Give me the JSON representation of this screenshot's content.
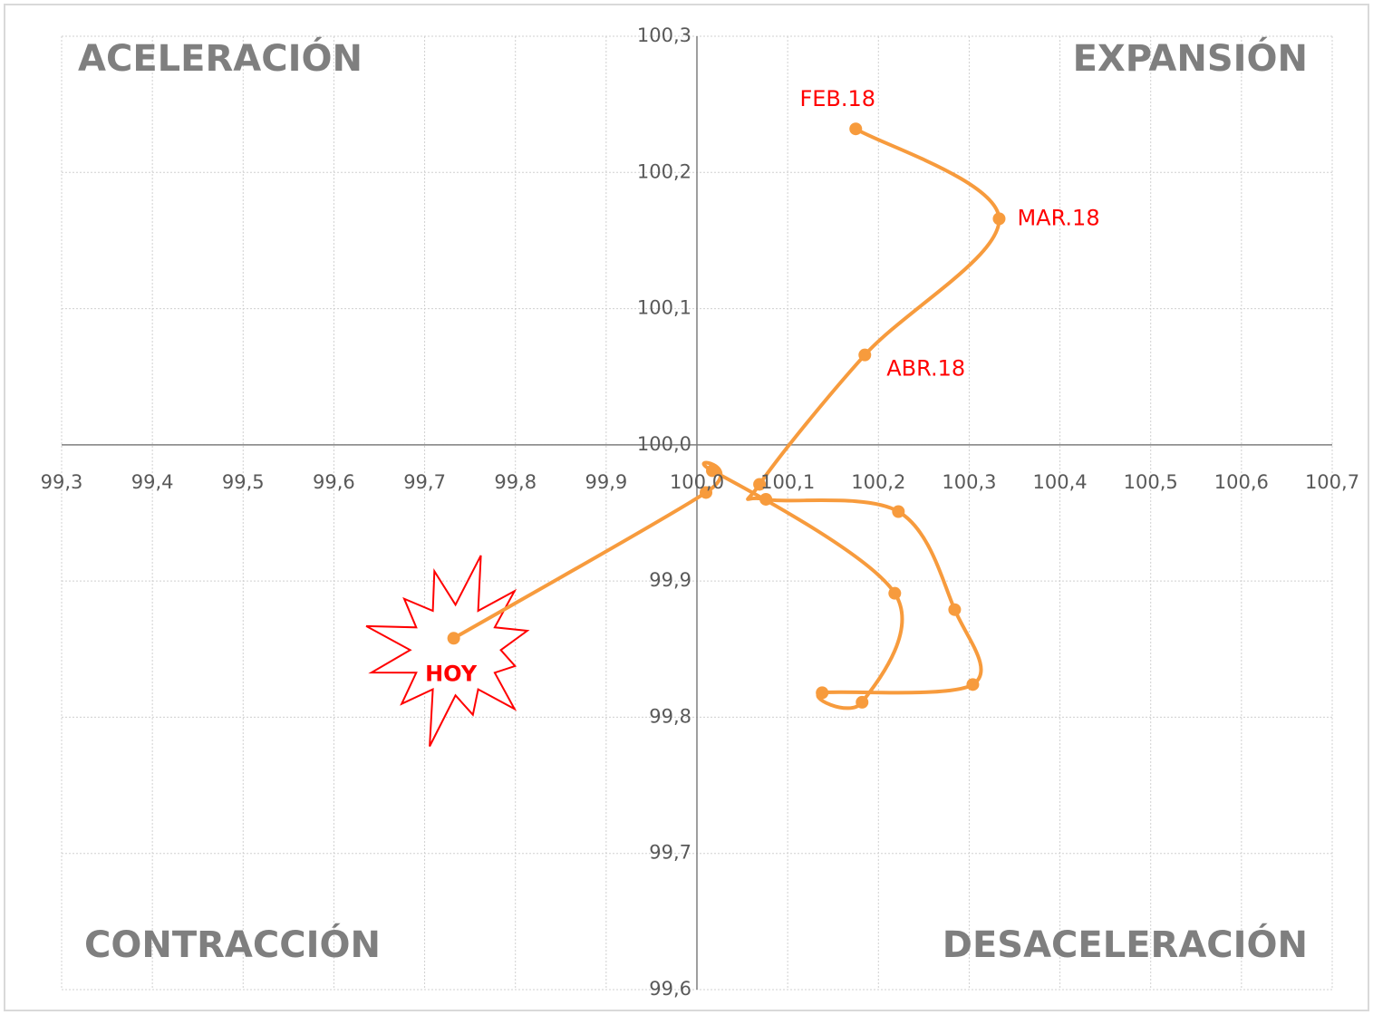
{
  "chart_data": {
    "type": "scatter",
    "xlim": [
      99.3,
      100.7
    ],
    "ylim": [
      99.6,
      100.3
    ],
    "xticks": [
      {
        "value": 99.3,
        "label": "99,3"
      },
      {
        "value": 99.4,
        "label": "99,4"
      },
      {
        "value": 99.5,
        "label": "99,5"
      },
      {
        "value": 99.6,
        "label": "99,6"
      },
      {
        "value": 99.7,
        "label": "99,7"
      },
      {
        "value": 99.8,
        "label": "99,8"
      },
      {
        "value": 99.9,
        "label": "99,9"
      },
      {
        "value": 100.0,
        "label": "100,0"
      },
      {
        "value": 100.1,
        "label": "100,1"
      },
      {
        "value": 100.2,
        "label": "100,2"
      },
      {
        "value": 100.3,
        "label": "100,3"
      },
      {
        "value": 100.4,
        "label": "100,4"
      },
      {
        "value": 100.5,
        "label": "100,5"
      },
      {
        "value": 100.6,
        "label": "100,6"
      },
      {
        "value": 100.7,
        "label": "100,7"
      }
    ],
    "yticks": [
      {
        "value": 99.6,
        "label": "99,6"
      },
      {
        "value": 99.7,
        "label": "99,7"
      },
      {
        "value": 99.8,
        "label": "99,8"
      },
      {
        "value": 99.9,
        "label": "99,9"
      },
      {
        "value": 100.0,
        "label": "100,0"
      },
      {
        "value": 100.1,
        "label": "100,1"
      },
      {
        "value": 100.2,
        "label": "100,2"
      },
      {
        "value": 100.3,
        "label": "100,3"
      }
    ],
    "grid": true,
    "x": [
      100.175,
      100.333,
      100.185,
      100.069,
      100.076,
      100.222,
      100.284,
      100.304,
      100.138,
      100.182,
      100.218,
      100.017,
      100.01,
      99.732
    ],
    "series": [
      {
        "color": "#f79b3d",
        "values": [
          100.232,
          100.166,
          100.066,
          99.971,
          99.96,
          99.951,
          99.879,
          99.824,
          99.818,
          99.811,
          99.891,
          99.981,
          99.965,
          99.858
        ]
      }
    ],
    "point_labels": [
      "FEB.18",
      "MAR.18",
      "ABR.18",
      null,
      null,
      null,
      null,
      null,
      null,
      null,
      null,
      null,
      null,
      "HOY"
    ],
    "annotations": [
      {
        "text": "ACELERACIÓN",
        "corner": "top-left"
      },
      {
        "text": "EXPANSIÓN",
        "corner": "top-right"
      },
      {
        "text": "CONTRACCIÓN",
        "corner": "bottom-left"
      },
      {
        "text": "DESACELERACIÓN",
        "corner": "bottom-right"
      }
    ]
  }
}
